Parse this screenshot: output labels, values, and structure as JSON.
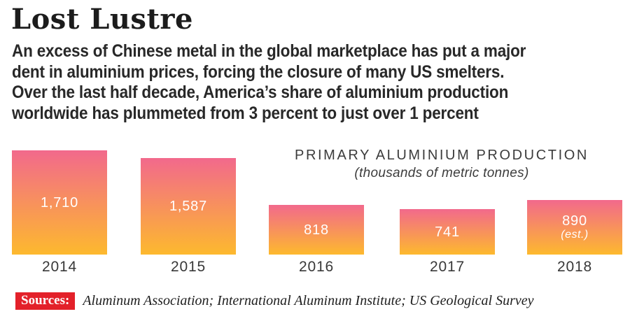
{
  "header": {
    "title": "Lost Lustre",
    "description_lines": [
      "An excess of Chinese metal in the global marketplace has put a major",
      "dent in aluminium prices, forcing the closure of many US smelters.",
      "Over the last half decade, America’s share of aluminium production",
      "worldwide has plummeted from 3 percent to just over 1 percent"
    ]
  },
  "chart_data": {
    "type": "bar",
    "title": "PRIMARY ALUMINIUM PRODUCTION",
    "subtitle": "(thousands of metric tonnes)",
    "unit": "thousands of metric tonnes",
    "categories": [
      "2014",
      "2015",
      "2016",
      "2017",
      "2018"
    ],
    "values": [
      1710,
      1587,
      818,
      741,
      890
    ],
    "value_labels": [
      "1,710",
      "1,587",
      "818",
      "741",
      "890"
    ],
    "notes": [
      "",
      "",
      "",
      "",
      "(est.)"
    ],
    "ylim": [
      0,
      1750
    ],
    "grid": "off",
    "legend": "none",
    "colors": {
      "bar_gradient_top": "#f2698c",
      "bar_gradient_bottom": "#fdb92e",
      "value_label": "#ffffff",
      "axis_label": "#383838"
    }
  },
  "footer": {
    "sources_label": "Sources:",
    "sources_text": "Aluminum Association; International Aluminum Institute; US Geological Survey",
    "sources_bg": "#e3212a"
  }
}
